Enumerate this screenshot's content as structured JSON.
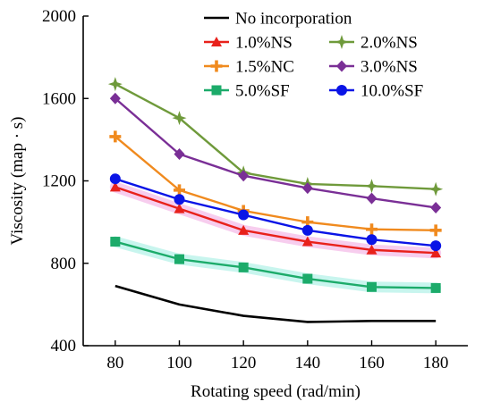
{
  "chart_data": {
    "type": "line",
    "xlabel": "Rotating speed (rad/min)",
    "ylabel": "Viscosity (map · s)",
    "x": [
      80,
      100,
      120,
      140,
      160,
      180
    ],
    "xticks": [
      "80",
      "100",
      "120",
      "140",
      "160",
      "180"
    ],
    "xlim": [
      70,
      190
    ],
    "ylim": [
      400,
      2000
    ],
    "yticks": [
      "400",
      "800",
      "1200",
      "1600",
      "2000"
    ],
    "grid": false,
    "legend_position": "top-right",
    "series": [
      {
        "name": "No incorporation",
        "color": "#000000",
        "marker": "none",
        "values": [
          690,
          600,
          545,
          515,
          520,
          520
        ]
      },
      {
        "name": "1.0%NS",
        "color": "#e8211b",
        "marker": "triangle-up",
        "values": [
          1170,
          1065,
          960,
          905,
          865,
          850
        ]
      },
      {
        "name": "2.0%NS",
        "color": "#6f9a3b",
        "marker": "star",
        "values": [
          1670,
          1505,
          1240,
          1185,
          1175,
          1160
        ]
      },
      {
        "name": "1.5%NC",
        "color": "#f08a1e",
        "marker": "plus",
        "values": [
          1415,
          1155,
          1055,
          1000,
          965,
          960
        ]
      },
      {
        "name": "3.0%NS",
        "color": "#7a2f96",
        "marker": "diamond",
        "values": [
          1600,
          1330,
          1225,
          1165,
          1115,
          1070
        ]
      },
      {
        "name": "5.0%SF",
        "color": "#1cab6a",
        "marker": "square",
        "values": [
          905,
          820,
          780,
          725,
          685,
          680
        ]
      },
      {
        "name": "10.0%SF",
        "color": "#0a14e6",
        "marker": "circle",
        "values": [
          1210,
          1110,
          1035,
          960,
          915,
          885
        ]
      }
    ]
  }
}
